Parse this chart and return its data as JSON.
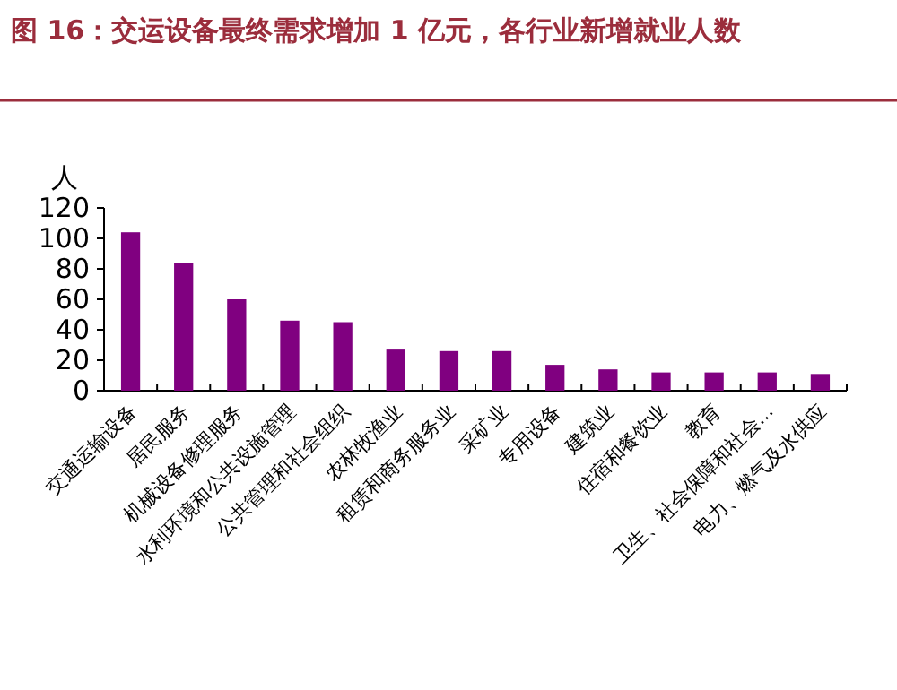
{
  "chart_data": {
    "type": "bar",
    "title": "图 16：交运设备最终需求增加 1 亿元，各行业新增就业人数",
    "ylabel": "人",
    "categories": [
      "交通运输设备",
      "居民服务",
      "机械设备修理服务",
      "水利环境和公共设施管理",
      "公共管理和社会组织",
      "农林牧渔业",
      "租赁和商务服务业",
      "采矿业",
      "专用设备",
      "建筑业",
      "住宿和餐饮业",
      "教育",
      "卫生、社会保障和社会...",
      "电力、燃气及水供应"
    ],
    "values": [
      104,
      84,
      60,
      46,
      45,
      27,
      26,
      26,
      17,
      14,
      12,
      12,
      12,
      11
    ],
    "color": "#800080",
    "ylim": [
      0,
      120
    ],
    "yticks": [
      0,
      20,
      40,
      60,
      80,
      100,
      120
    ],
    "grid": false
  }
}
